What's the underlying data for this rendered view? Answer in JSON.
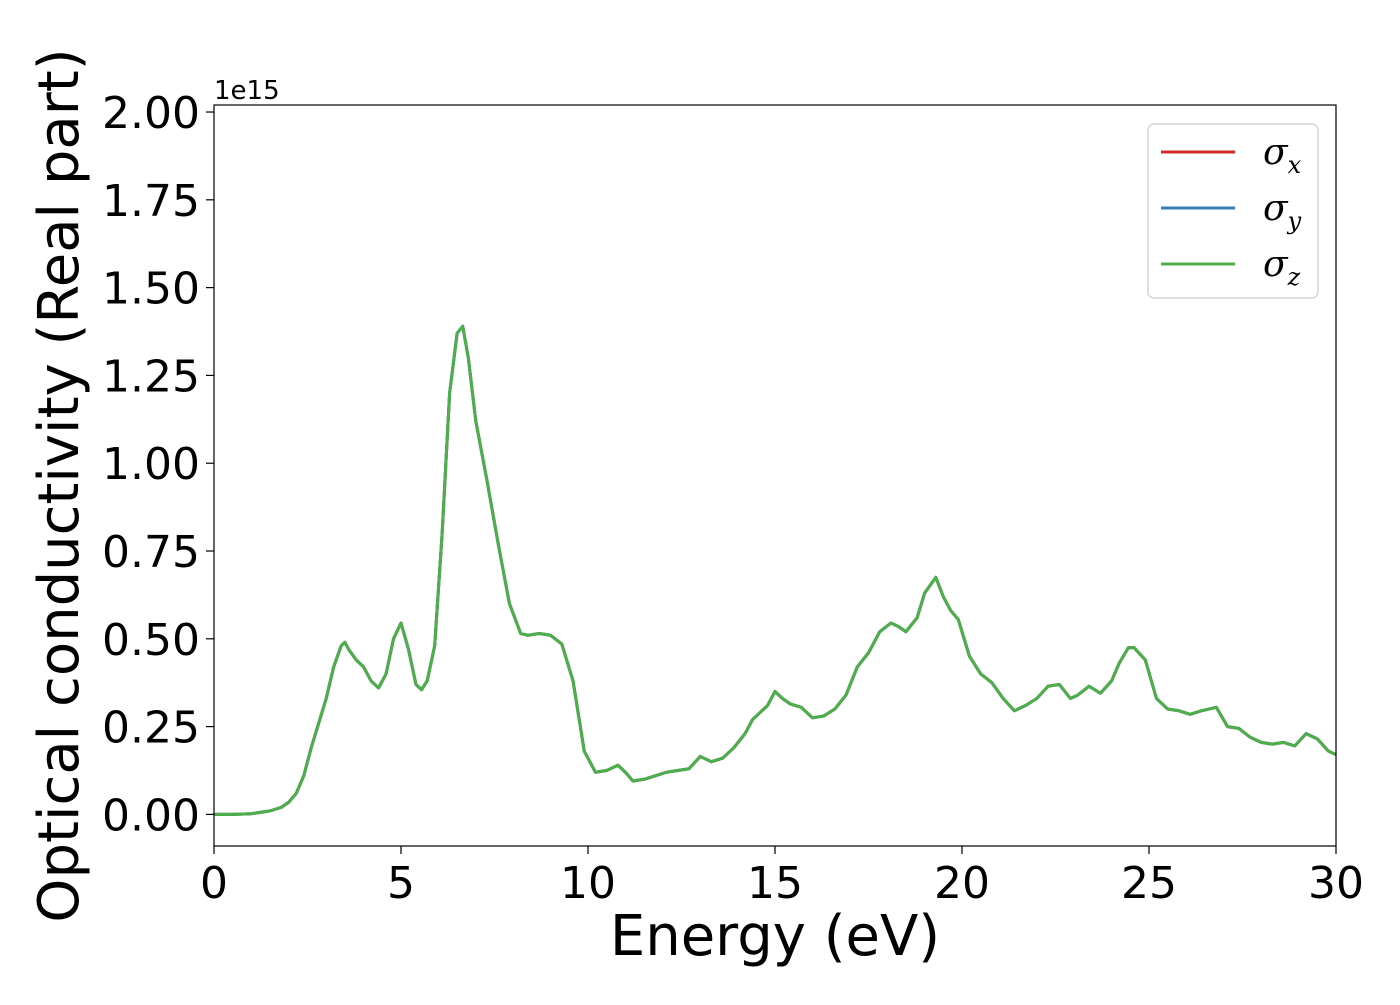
{
  "chart_data": {
    "type": "line",
    "xlabel": "Energy (eV)",
    "ylabel": "Optical conductivity (Real part)",
    "y_offset_text": "1e15",
    "xlim": [
      0,
      30
    ],
    "ylim": [
      -0.09,
      2.02
    ],
    "y_scale_factor": 1000000000000000.0,
    "grid": false,
    "legend_placement": "top-right",
    "x_ticks": [
      0,
      5,
      10,
      15,
      20,
      25,
      30
    ],
    "x_tick_labels": [
      "0",
      "5",
      "10",
      "15",
      "20",
      "25",
      "30"
    ],
    "y_ticks": [
      0.0,
      0.25,
      0.5,
      0.75,
      1.0,
      1.25,
      1.5,
      1.75,
      2.0
    ],
    "y_tick_labels": [
      "0.00",
      "0.25",
      "0.50",
      "0.75",
      "1.00",
      "1.25",
      "1.50",
      "1.75",
      "2.00"
    ],
    "x": [
      0,
      0.5,
      1.0,
      1.5,
      1.8,
      2.0,
      2.2,
      2.4,
      2.6,
      2.8,
      3.0,
      3.2,
      3.4,
      3.5,
      3.6,
      3.8,
      4.0,
      4.2,
      4.4,
      4.6,
      4.8,
      5.0,
      5.2,
      5.4,
      5.55,
      5.7,
      5.9,
      6.1,
      6.3,
      6.5,
      6.65,
      6.8,
      7.0,
      7.3,
      7.6,
      7.9,
      8.2,
      8.4,
      8.7,
      9.0,
      9.3,
      9.6,
      9.9,
      10.2,
      10.5,
      10.8,
      11.0,
      11.2,
      11.5,
      11.8,
      12.1,
      12.4,
      12.7,
      13.0,
      13.3,
      13.6,
      13.9,
      14.2,
      14.4,
      14.6,
      14.8,
      15.0,
      15.2,
      15.4,
      15.7,
      16.0,
      16.3,
      16.6,
      16.9,
      17.2,
      17.5,
      17.8,
      18.1,
      18.3,
      18.5,
      18.8,
      19.0,
      19.3,
      19.5,
      19.7,
      19.9,
      20.2,
      20.5,
      20.8,
      21.1,
      21.4,
      21.7,
      22.0,
      22.3,
      22.6,
      22.9,
      23.1,
      23.4,
      23.7,
      24.0,
      24.2,
      24.45,
      24.6,
      24.9,
      25.2,
      25.5,
      25.8,
      26.1,
      26.4,
      26.8,
      27.1,
      27.4,
      27.7,
      28.0,
      28.3,
      28.6,
      28.9,
      29.2,
      29.5,
      29.8,
      30.0
    ],
    "series": [
      {
        "name": "x",
        "color": "#d62728",
        "values": [
          0.0,
          0.0,
          0.002,
          0.01,
          0.02,
          0.035,
          0.06,
          0.11,
          0.19,
          0.26,
          0.33,
          0.42,
          0.48,
          0.49,
          0.47,
          0.44,
          0.42,
          0.38,
          0.36,
          0.4,
          0.5,
          0.545,
          0.47,
          0.37,
          0.355,
          0.38,
          0.48,
          0.8,
          1.2,
          1.37,
          1.39,
          1.3,
          1.12,
          0.95,
          0.77,
          0.6,
          0.515,
          0.51,
          0.515,
          0.51,
          0.485,
          0.38,
          0.18,
          0.12,
          0.125,
          0.14,
          0.12,
          0.095,
          0.1,
          0.11,
          0.12,
          0.125,
          0.13,
          0.165,
          0.15,
          0.16,
          0.19,
          0.23,
          0.27,
          0.29,
          0.31,
          0.35,
          0.33,
          0.315,
          0.305,
          0.275,
          0.28,
          0.3,
          0.34,
          0.42,
          0.46,
          0.52,
          0.545,
          0.535,
          0.52,
          0.56,
          0.63,
          0.675,
          0.62,
          0.58,
          0.555,
          0.45,
          0.4,
          0.375,
          0.33,
          0.295,
          0.31,
          0.33,
          0.365,
          0.37,
          0.33,
          0.34,
          0.365,
          0.345,
          0.38,
          0.43,
          0.475,
          0.475,
          0.44,
          0.33,
          0.3,
          0.295,
          0.285,
          0.295,
          0.305,
          0.25,
          0.245,
          0.22,
          0.205,
          0.2,
          0.205,
          0.195,
          0.23,
          0.215,
          0.18,
          0.17
        ]
      },
      {
        "name": "y",
        "color": "#377eb8",
        "values": [
          0.0,
          0.0,
          0.002,
          0.01,
          0.02,
          0.035,
          0.06,
          0.11,
          0.19,
          0.26,
          0.33,
          0.42,
          0.48,
          0.49,
          0.47,
          0.44,
          0.42,
          0.38,
          0.36,
          0.4,
          0.5,
          0.545,
          0.47,
          0.37,
          0.355,
          0.38,
          0.48,
          0.8,
          1.2,
          1.37,
          1.39,
          1.3,
          1.12,
          0.95,
          0.77,
          0.6,
          0.515,
          0.51,
          0.515,
          0.51,
          0.485,
          0.38,
          0.18,
          0.12,
          0.125,
          0.14,
          0.12,
          0.095,
          0.1,
          0.11,
          0.12,
          0.125,
          0.13,
          0.165,
          0.15,
          0.16,
          0.19,
          0.23,
          0.27,
          0.29,
          0.31,
          0.35,
          0.33,
          0.315,
          0.305,
          0.275,
          0.28,
          0.3,
          0.34,
          0.42,
          0.46,
          0.52,
          0.545,
          0.535,
          0.52,
          0.56,
          0.63,
          0.675,
          0.62,
          0.58,
          0.555,
          0.45,
          0.4,
          0.375,
          0.33,
          0.295,
          0.31,
          0.33,
          0.365,
          0.37,
          0.33,
          0.34,
          0.365,
          0.345,
          0.38,
          0.43,
          0.475,
          0.475,
          0.44,
          0.33,
          0.3,
          0.295,
          0.285,
          0.295,
          0.305,
          0.25,
          0.245,
          0.22,
          0.205,
          0.2,
          0.205,
          0.195,
          0.23,
          0.215,
          0.18,
          0.17
        ]
      },
      {
        "name": "z",
        "color": "#4daf4a",
        "values": [
          0.0,
          0.0,
          0.002,
          0.01,
          0.02,
          0.035,
          0.06,
          0.11,
          0.19,
          0.26,
          0.33,
          0.42,
          0.48,
          0.49,
          0.47,
          0.44,
          0.42,
          0.38,
          0.36,
          0.4,
          0.5,
          0.545,
          0.47,
          0.37,
          0.355,
          0.38,
          0.48,
          0.8,
          1.2,
          1.37,
          1.39,
          1.3,
          1.12,
          0.95,
          0.77,
          0.6,
          0.515,
          0.51,
          0.515,
          0.51,
          0.485,
          0.38,
          0.18,
          0.12,
          0.125,
          0.14,
          0.12,
          0.095,
          0.1,
          0.11,
          0.12,
          0.125,
          0.13,
          0.165,
          0.15,
          0.16,
          0.19,
          0.23,
          0.27,
          0.29,
          0.31,
          0.35,
          0.33,
          0.315,
          0.305,
          0.275,
          0.28,
          0.3,
          0.34,
          0.42,
          0.46,
          0.52,
          0.545,
          0.535,
          0.52,
          0.56,
          0.63,
          0.675,
          0.62,
          0.58,
          0.555,
          0.45,
          0.4,
          0.375,
          0.33,
          0.295,
          0.31,
          0.33,
          0.365,
          0.37,
          0.33,
          0.34,
          0.365,
          0.345,
          0.38,
          0.43,
          0.475,
          0.475,
          0.44,
          0.33,
          0.3,
          0.295,
          0.285,
          0.295,
          0.305,
          0.25,
          0.245,
          0.22,
          0.205,
          0.2,
          0.205,
          0.195,
          0.23,
          0.215,
          0.18,
          0.17
        ]
      }
    ],
    "legend": {
      "symbol": "σ",
      "entries": [
        {
          "sub": "x",
          "color": "#d62728"
        },
        {
          "sub": "y",
          "color": "#377eb8"
        },
        {
          "sub": "z",
          "color": "#4daf4a"
        }
      ]
    }
  }
}
